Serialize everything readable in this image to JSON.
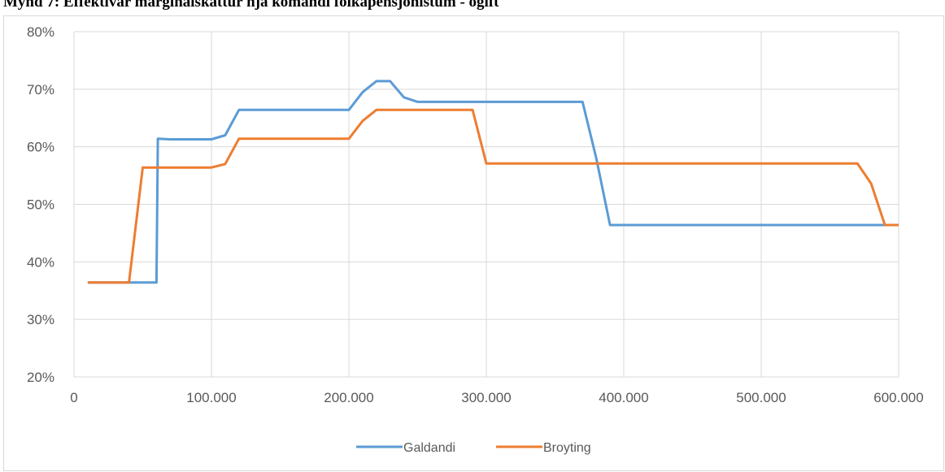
{
  "title": "Mynd 7: Effektívar marginalskattur hjá komandi fólkapensjónistum - ógift",
  "chart_data": {
    "type": "line",
    "title": "Mynd 7: Effektívar marginalskattur hjá komandi fólkapensjónistum - ógift",
    "xlabel": "",
    "ylabel": "",
    "xlim": [
      0,
      600000
    ],
    "ylim": [
      0.2,
      0.8
    ],
    "grid": true,
    "legend_position": "bottom",
    "x_ticks": [
      {
        "value": 0,
        "label": "0"
      },
      {
        "value": 100000,
        "label": "100.000"
      },
      {
        "value": 200000,
        "label": "200.000"
      },
      {
        "value": 300000,
        "label": "300.000"
      },
      {
        "value": 400000,
        "label": "400.000"
      },
      {
        "value": 500000,
        "label": "500.000"
      },
      {
        "value": 600000,
        "label": "600.000"
      }
    ],
    "y_ticks": [
      {
        "value": 0.2,
        "label": "20%"
      },
      {
        "value": 0.3,
        "label": "30%"
      },
      {
        "value": 0.4,
        "label": "40%"
      },
      {
        "value": 0.5,
        "label": "50%"
      },
      {
        "value": 0.6,
        "label": "60%"
      },
      {
        "value": 0.7,
        "label": "70%"
      },
      {
        "value": 0.8,
        "label": "80%"
      }
    ],
    "series": [
      {
        "name": "Galdandi",
        "color": "#5b9bd5",
        "points": [
          [
            10000,
            0.364
          ],
          [
            60000,
            0.364
          ],
          [
            61000,
            0.614
          ],
          [
            70000,
            0.613
          ],
          [
            100000,
            0.613
          ],
          [
            110000,
            0.62
          ],
          [
            120000,
            0.664
          ],
          [
            200000,
            0.664
          ],
          [
            210000,
            0.695
          ],
          [
            220000,
            0.714
          ],
          [
            230000,
            0.714
          ],
          [
            240000,
            0.686
          ],
          [
            250000,
            0.678
          ],
          [
            370000,
            0.678
          ],
          [
            380000,
            0.58
          ],
          [
            390000,
            0.464
          ],
          [
            600000,
            0.464
          ]
        ]
      },
      {
        "name": "Broyting",
        "color": "#ed7d31",
        "points": [
          [
            10000,
            0.364
          ],
          [
            40000,
            0.364
          ],
          [
            50000,
            0.564
          ],
          [
            70000,
            0.564
          ],
          [
            100000,
            0.564
          ],
          [
            110000,
            0.57
          ],
          [
            120000,
            0.614
          ],
          [
            200000,
            0.614
          ],
          [
            210000,
            0.645
          ],
          [
            220000,
            0.664
          ],
          [
            290000,
            0.664
          ],
          [
            300000,
            0.571
          ],
          [
            570000,
            0.571
          ],
          [
            580000,
            0.536
          ],
          [
            590000,
            0.464
          ],
          [
            600000,
            0.464
          ]
        ]
      }
    ]
  }
}
